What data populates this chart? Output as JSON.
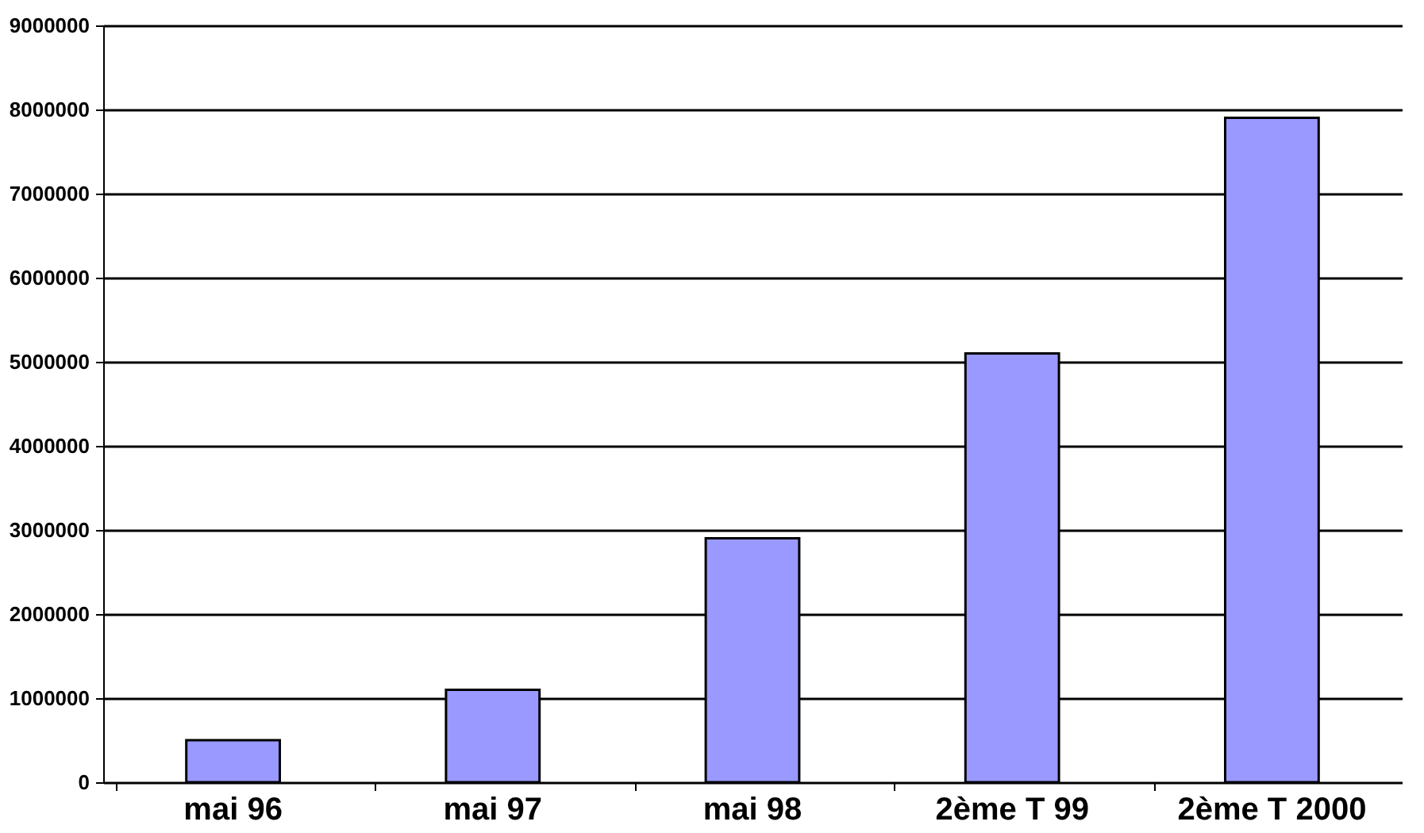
{
  "chart_data": {
    "type": "bar",
    "categories": [
      "mai 96",
      "mai 97",
      "mai 98",
      "2ème T 99",
      "2ème T 2000"
    ],
    "values": [
      500000,
      1100000,
      2900000,
      5100000,
      7900000
    ],
    "color": "#9999ff",
    "ylim": [
      0,
      9000000
    ],
    "yticks": [
      0,
      1000000,
      2000000,
      3000000,
      4000000,
      5000000,
      6000000,
      7000000,
      8000000,
      9000000
    ],
    "grid": "y"
  }
}
